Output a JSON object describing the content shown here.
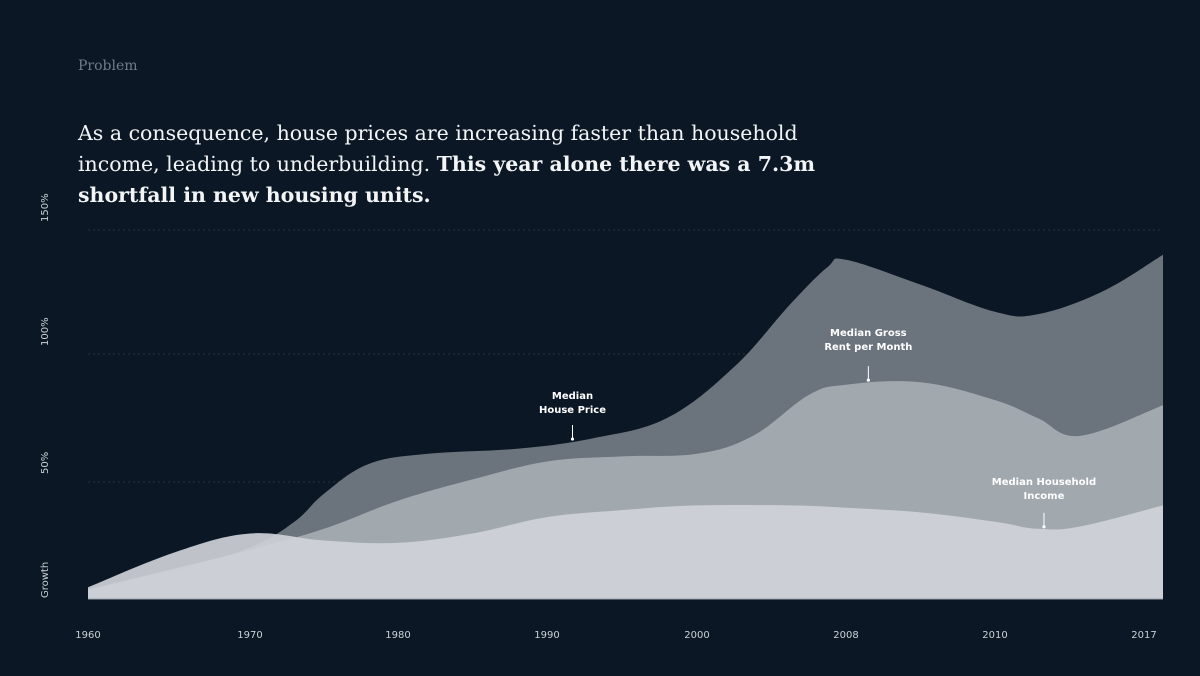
{
  "section_label": "Problem",
  "headline": {
    "regular": "As a consequence, house prices are increasing faster than household income, leading to underbuilding. ",
    "bold": "This year alone there was a 7.3m shortfall in new housing units."
  },
  "colors": {
    "background": "#0b1724",
    "house_price": "#6b747d",
    "rent": "#a6acb2",
    "income": "#cfd3d8",
    "grid": "#24323f"
  },
  "chart_data": {
    "type": "area",
    "x": [
      1960,
      1970,
      1980,
      1990,
      2000,
      2008,
      2010,
      2017
    ],
    "x_tick_labels": [
      "1960",
      "1970",
      "1980",
      "1990",
      "2000",
      "2008",
      "2010",
      "2017"
    ],
    "xlabel": "",
    "ylabel": "Growth",
    "y_ticks": [
      50,
      100,
      150
    ],
    "y_tick_labels": [
      "50%",
      "100%",
      "150%"
    ],
    "ylim": [
      0,
      150
    ],
    "grid": true,
    "series": [
      {
        "name": "Median House Price",
        "label_lines": [
          "Median",
          "House Price"
        ],
        "x": [
          1960,
          1965,
          1970,
          1973,
          1975,
          1978,
          1982,
          1988,
          1993,
          1998,
          2002,
          2005,
          2007,
          2008,
          2009,
          2010,
          2012,
          2015,
          2017
        ],
        "values": [
          4,
          12,
          22,
          33,
          45,
          57,
          61,
          63,
          67,
          75,
          95,
          120,
          135,
          138,
          128,
          117,
          116,
          125,
          140
        ],
        "annotation": {
          "x": 1991.7,
          "y": 66
        }
      },
      {
        "name": "Median Gross Rent per Month",
        "label_lines": [
          "Median Gross",
          "Rent per Month"
        ],
        "x": [
          1960,
          1965,
          1970,
          1975,
          1980,
          1985,
          1990,
          1995,
          2000,
          2003,
          2006,
          2008,
          2009,
          2010,
          2012,
          2014,
          2017
        ],
        "values": [
          4,
          13,
          21,
          30,
          42,
          51,
          58,
          60,
          61,
          68,
          84,
          88,
          89,
          82,
          75,
          68,
          80
        ],
        "annotation": {
          "x": 2008.3,
          "y": 89
        }
      },
      {
        "name": "Median Household Income",
        "label_lines": [
          "Median Household",
          "Income"
        ],
        "x": [
          1960,
          1965,
          1970,
          1975,
          1980,
          1985,
          1990,
          1995,
          2000,
          2005,
          2008,
          2009,
          2010,
          2012,
          2014,
          2017
        ],
        "values": [
          5,
          20,
          28,
          25,
          24,
          28,
          35,
          38,
          40,
          40,
          39,
          37,
          33,
          30,
          31,
          40
        ],
        "annotation": {
          "x": 2012.3,
          "y": 30
        }
      }
    ]
  }
}
